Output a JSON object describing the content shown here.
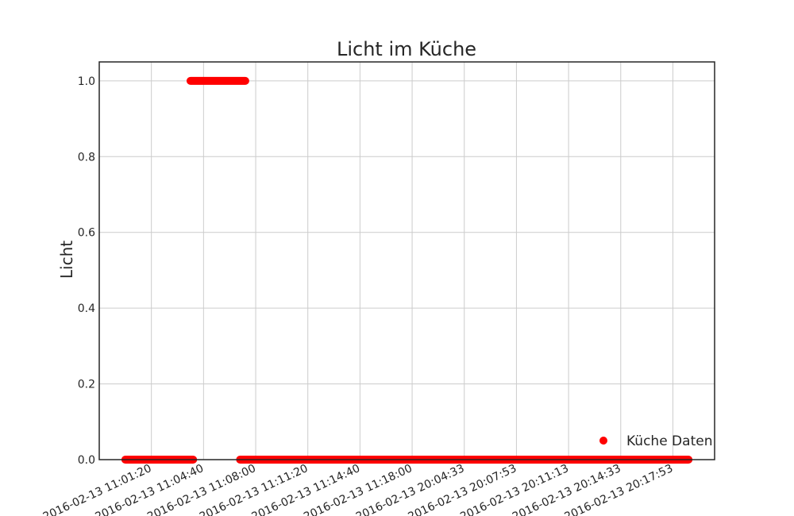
{
  "chart_data": {
    "type": "scatter",
    "title": "Licht im Küche",
    "xlabel": "",
    "ylabel": "Licht",
    "ylim": [
      0,
      1.05
    ],
    "y_ticks": [
      "0.0",
      "0.2",
      "0.4",
      "0.6",
      "0.8",
      "1.0"
    ],
    "y_tick_values": [
      0,
      0.2,
      0.4,
      0.6,
      0.8,
      1.0
    ],
    "x_ticks": [
      "2016-02-13 11:01:20",
      "2016-02-13 11:04:40",
      "2016-02-13 11:08:00",
      "2016-02-13 11:11:20",
      "2016-02-13 11:14:40",
      "2016-02-13 11:18:00",
      "2016-02-13 20:04:33",
      "2016-02-13 20:07:53",
      "2016-02-13 20:11:13",
      "2016-02-13 20:14:33",
      "2016-02-13 20:17:53"
    ],
    "x_tick_values": [
      1.0,
      2.0,
      3.0,
      4.0,
      5.0,
      6.0,
      7.0,
      8.0,
      9.0,
      10.0,
      11.0
    ],
    "xlim": [
      0.0,
      11.8
    ],
    "grid": true,
    "legend_position": "bottom-right",
    "series": [
      {
        "name": "Küche Daten",
        "color": "#ff0000",
        "segments": [
          {
            "x_start": 0.5,
            "x_end": 1.8,
            "y": 0
          },
          {
            "x_start": 1.75,
            "x_end": 2.8,
            "y": 1
          },
          {
            "x_start": 2.7,
            "x_end": 11.3,
            "y": 0
          }
        ]
      }
    ]
  }
}
